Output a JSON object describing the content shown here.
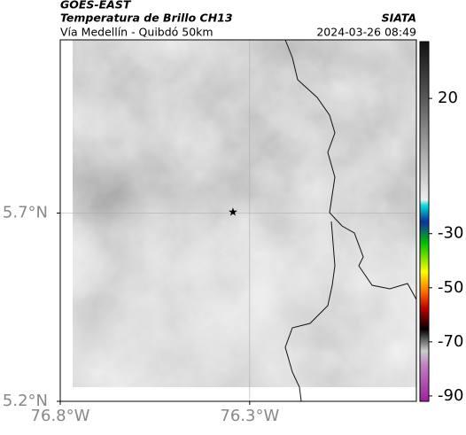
{
  "header": {
    "satellite": "GOES-EAST",
    "product": "Temperatura de Brillo CH13",
    "source": "SIATA",
    "route": "Vía Medellín - Quibdó 50km",
    "timestamp": "2024-03-26 08:49"
  },
  "map": {
    "xlim": [
      -76.8,
      -75.86
    ],
    "ylim": [
      5.2,
      6.16
    ],
    "xticks": [
      {
        "value": -76.8,
        "label": "76.8°W"
      },
      {
        "value": -76.3,
        "label": "76.3°W"
      }
    ],
    "yticks": [
      {
        "value": 5.2,
        "label": "5.2°N"
      },
      {
        "value": 5.7,
        "label": "5.7°N"
      }
    ]
  },
  "colorbar": {
    "lim": [
      -92,
      41
    ],
    "ticks": [
      20,
      -30,
      -50,
      -70,
      -90
    ]
  }
}
